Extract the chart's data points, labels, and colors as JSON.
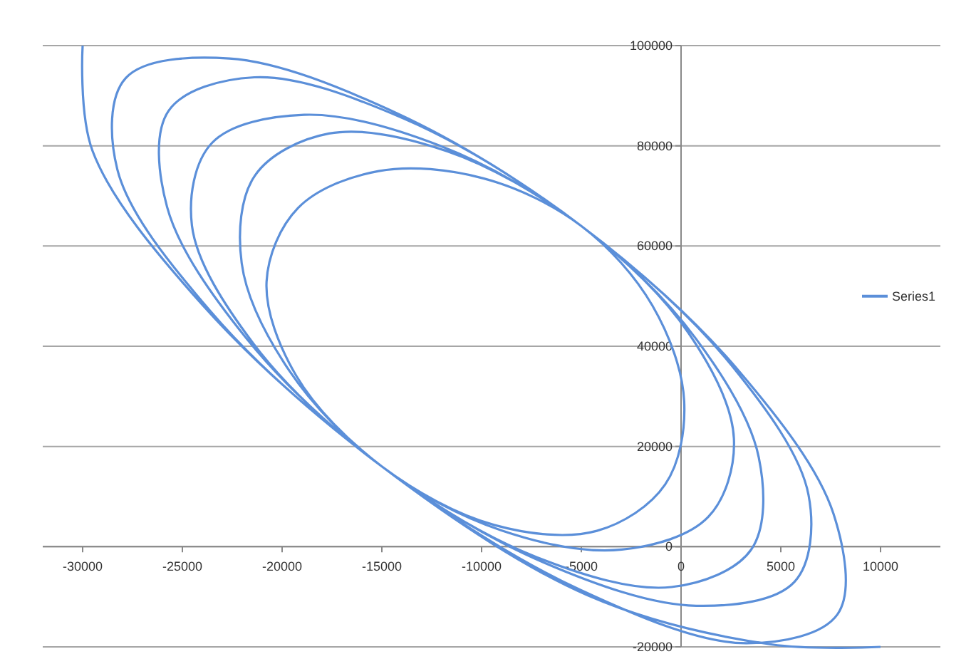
{
  "chart_data": {
    "type": "line",
    "xlim": [
      -32000,
      13000
    ],
    "ylim": [
      -20000,
      100000
    ],
    "xticks": [
      -30000,
      -25000,
      -20000,
      -15000,
      -10000,
      -5000,
      0,
      5000,
      10000
    ],
    "yticks": [
      -20000,
      0,
      20000,
      40000,
      60000,
      80000,
      100000
    ],
    "grid": "y",
    "legend": "right",
    "marker": "none",
    "line_style": "solid",
    "series": [
      {
        "name": "Series1",
        "color": "#5b8fd9",
        "x": [
          -30000,
          -29508,
          -23970,
          -15000,
          -5050,
          3260,
          7840,
          7640,
          2890,
          -5000,
          -13870,
          -21390,
          -25680,
          -25768,
          -21810,
          -15000,
          -7210,
          -480,
          3520,
          3896,
          730,
          -5000,
          -11710,
          -17650,
          -21360,
          -22026,
          -19650,
          -15000,
          -9370,
          -4220,
          -800,
          156,
          -1430,
          -5000,
          -9910,
          -15156,
          -19200,
          -20780,
          -19290,
          -15000,
          -9010,
          -2974,
          1360,
          2650,
          370,
          -5000,
          -12070,
          -18896,
          -23520,
          -24520,
          -21450,
          -15000,
          -6850,
          768,
          5680,
          6390,
          2530,
          -5000,
          -14230,
          -22640,
          -27840,
          -28260,
          -23610,
          -15000,
          -4690,
          4508,
          10000
        ],
        "values": [
          100000,
          79024,
          48136,
          16000,
          -8624,
          -19280,
          -13520,
          6580,
          35104,
          64000,
          85384,
          93670,
          87040,
          67804,
          41656,
          16000,
          -2144,
          -8060,
          -560,
          17812,
          41584,
          64000,
          78904,
          82450,
          74080,
          56578,
          35176,
          16000,
          4336,
          3160,
          12400,
          29032,
          48064,
          64000,
          73504,
          74968,
          67600,
          52840,
          34096,
          16000,
          3256,
          -578,
          5920,
          21550,
          42664,
          64000,
          79984,
          86188,
          80560,
          64060,
          40576,
          16000,
          -3224,
          -11804,
          -7040,
          10330,
          36184,
          64000,
          86464,
          97420,
          93520,
          75280,
          47056,
          16000,
          -9704,
          -19500,
          -20000
        ]
      }
    ]
  }
}
